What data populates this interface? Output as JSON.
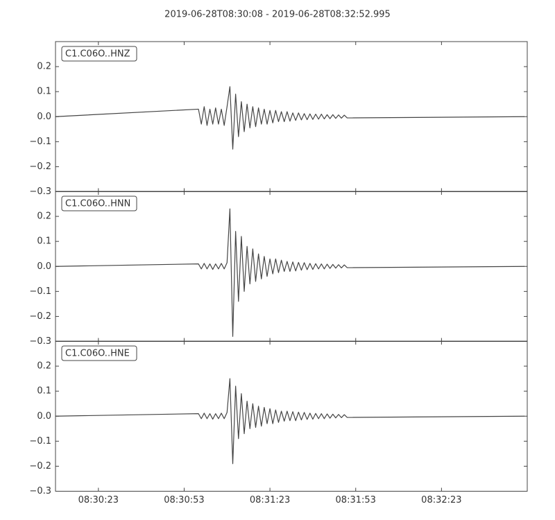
{
  "title": "2019-06-28T08:30:08  -  2019-06-28T08:32:52.995",
  "chart_data": [
    {
      "type": "line",
      "label": "C1.C06O..HNZ",
      "color": "#444444",
      "x": [
        "08:30:08",
        "08:30:58",
        "08:30:59",
        "08:31:00",
        "08:31:01",
        "08:31:02",
        "08:31:03",
        "08:31:04",
        "08:31:05",
        "08:31:06",
        "08:31:07",
        "08:31:08",
        "08:31:09",
        "08:31:10",
        "08:31:11",
        "08:31:12",
        "08:31:13",
        "08:31:14",
        "08:31:15",
        "08:31:16",
        "08:31:17",
        "08:31:18",
        "08:31:19",
        "08:31:20",
        "08:31:21",
        "08:31:22",
        "08:31:23",
        "08:31:24",
        "08:31:25",
        "08:31:26",
        "08:31:27",
        "08:31:28",
        "08:31:29",
        "08:31:30",
        "08:31:31",
        "08:31:32",
        "08:31:33",
        "08:31:34",
        "08:31:35",
        "08:31:36",
        "08:31:37",
        "08:31:38",
        "08:31:39",
        "08:31:40",
        "08:31:41",
        "08:31:42",
        "08:31:43",
        "08:31:44",
        "08:31:45",
        "08:31:46",
        "08:31:47",
        "08:31:48",
        "08:31:49",
        "08:31:50",
        "08:32:52"
      ],
      "values": [
        0,
        0.03,
        -0.03,
        0.04,
        -0.035,
        0.03,
        -0.03,
        0.035,
        -0.03,
        0.03,
        -0.035,
        0.04,
        0.12,
        -0.13,
        0.09,
        -0.08,
        0.06,
        -0.06,
        0.05,
        -0.045,
        0.04,
        -0.04,
        0.035,
        -0.03,
        0.03,
        -0.03,
        0.025,
        -0.025,
        0.025,
        -0.02,
        0.02,
        -0.02,
        0.02,
        -0.018,
        0.015,
        -0.015,
        0.015,
        -0.013,
        0.012,
        -0.012,
        0.011,
        -0.011,
        0.01,
        -0.01,
        0.01,
        -0.009,
        0.008,
        -0.008,
        0.008,
        -0.007,
        0.007,
        -0.006,
        0.006,
        -0.005,
        0
      ],
      "xlim": [
        "08:30:08",
        "08:32:52.995"
      ],
      "ylim": [
        -0.3,
        0.3
      ],
      "yticks": [
        0.2,
        0.1,
        {
          "value": 0,
          "label": "0.0"
        },
        {
          "value": -0.1,
          "label": "−0.1"
        },
        {
          "value": -0.2,
          "label": "−0.2"
        },
        {
          "value": -0.3,
          "label": "−0.3"
        }
      ]
    },
    {
      "type": "line",
      "label": "C1.C06O..HNN",
      "color": "#444444",
      "x": [
        "08:30:08",
        "08:30:58",
        "08:30:59",
        "08:31:00",
        "08:31:01",
        "08:31:02",
        "08:31:03",
        "08:31:04",
        "08:31:05",
        "08:31:06",
        "08:31:07",
        "08:31:08",
        "08:31:09",
        "08:31:10",
        "08:31:11",
        "08:31:12",
        "08:31:13",
        "08:31:14",
        "08:31:15",
        "08:31:16",
        "08:31:17",
        "08:31:18",
        "08:31:19",
        "08:31:20",
        "08:31:21",
        "08:31:22",
        "08:31:23",
        "08:31:24",
        "08:31:25",
        "08:31:26",
        "08:31:27",
        "08:31:28",
        "08:31:29",
        "08:31:30",
        "08:31:31",
        "08:31:32",
        "08:31:33",
        "08:31:34",
        "08:31:35",
        "08:31:36",
        "08:31:37",
        "08:31:38",
        "08:31:39",
        "08:31:40",
        "08:31:41",
        "08:31:42",
        "08:31:43",
        "08:31:44",
        "08:31:45",
        "08:31:46",
        "08:31:47",
        "08:31:48",
        "08:31:49",
        "08:31:50",
        "08:32:52"
      ],
      "values": [
        0,
        0.01,
        -0.01,
        0.012,
        -0.01,
        0.01,
        -0.012,
        0.01,
        -0.01,
        0.012,
        -0.01,
        0.015,
        0.23,
        -0.28,
        0.14,
        -0.14,
        0.12,
        -0.1,
        0.08,
        -0.07,
        0.07,
        -0.06,
        0.05,
        -0.05,
        0.04,
        -0.04,
        0.03,
        -0.03,
        0.03,
        -0.025,
        0.025,
        -0.02,
        0.02,
        -0.02,
        0.018,
        -0.018,
        0.016,
        -0.015,
        0.015,
        -0.013,
        0.012,
        -0.012,
        0.011,
        -0.01,
        0.01,
        -0.01,
        0.009,
        -0.008,
        0.008,
        -0.007,
        0.007,
        -0.006,
        0.006,
        -0.005,
        0
      ],
      "xlim": [
        "08:30:08",
        "08:32:52.995"
      ],
      "ylim": [
        -0.3,
        0.3
      ],
      "yticks": [
        0.2,
        0.1,
        {
          "value": 0,
          "label": "0.0"
        },
        {
          "value": -0.1,
          "label": "−0.1"
        },
        {
          "value": -0.2,
          "label": "−0.2"
        },
        {
          "value": -0.3,
          "label": "−0.3"
        }
      ]
    },
    {
      "type": "line",
      "label": "C1.C06O..HNE",
      "color": "#444444",
      "x": [
        "08:30:08",
        "08:30:58",
        "08:30:59",
        "08:31:00",
        "08:31:01",
        "08:31:02",
        "08:31:03",
        "08:31:04",
        "08:31:05",
        "08:31:06",
        "08:31:07",
        "08:31:08",
        "08:31:09",
        "08:31:10",
        "08:31:11",
        "08:31:12",
        "08:31:13",
        "08:31:14",
        "08:31:15",
        "08:31:16",
        "08:31:17",
        "08:31:18",
        "08:31:19",
        "08:31:20",
        "08:31:21",
        "08:31:22",
        "08:31:23",
        "08:31:24",
        "08:31:25",
        "08:31:26",
        "08:31:27",
        "08:31:28",
        "08:31:29",
        "08:31:30",
        "08:31:31",
        "08:31:32",
        "08:31:33",
        "08:31:34",
        "08:31:35",
        "08:31:36",
        "08:31:37",
        "08:31:38",
        "08:31:39",
        "08:31:40",
        "08:31:41",
        "08:31:42",
        "08:31:43",
        "08:31:44",
        "08:31:45",
        "08:31:46",
        "08:31:47",
        "08:31:48",
        "08:31:49",
        "08:31:50",
        "08:32:52"
      ],
      "values": [
        0,
        0.01,
        -0.01,
        0.012,
        -0.01,
        0.01,
        -0.012,
        0.01,
        -0.01,
        0.012,
        -0.01,
        0.015,
        0.15,
        -0.19,
        0.12,
        -0.09,
        0.09,
        -0.07,
        0.06,
        -0.05,
        0.05,
        -0.045,
        0.04,
        -0.04,
        0.035,
        -0.03,
        0.03,
        -0.03,
        0.025,
        -0.025,
        0.02,
        -0.02,
        0.02,
        -0.018,
        0.018,
        -0.018,
        0.016,
        -0.015,
        0.015,
        -0.013,
        0.012,
        -0.012,
        0.011,
        -0.01,
        0.01,
        -0.01,
        0.009,
        -0.008,
        0.008,
        -0.007,
        0.007,
        -0.006,
        0.006,
        -0.005,
        0
      ],
      "xlim": [
        "08:30:08",
        "08:32:52.995"
      ],
      "ylim": [
        -0.3,
        0.3
      ],
      "yticks": [
        0.2,
        0.1,
        {
          "value": 0,
          "label": "0.0"
        },
        {
          "value": -0.1,
          "label": "−0.1"
        },
        {
          "value": -0.2,
          "label": "−0.2"
        },
        {
          "value": -0.3,
          "label": "−0.3"
        }
      ],
      "xticks": [
        "08:30:23",
        "08:30:53",
        "08:31:23",
        "08:31:53",
        "08:32:23"
      ]
    }
  ]
}
